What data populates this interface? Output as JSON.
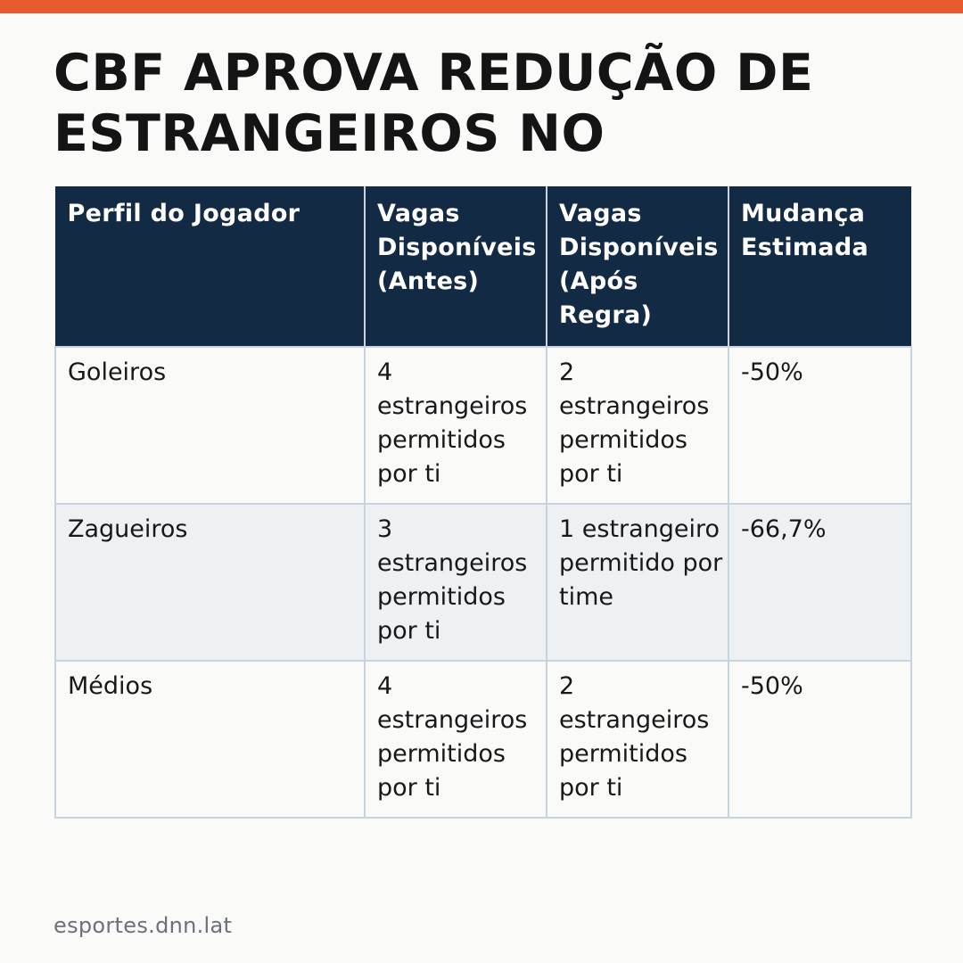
{
  "headline": {
    "line1": "CBF APROVA REDUÇÃO DE",
    "line2": "ESTRANGEIROS NO"
  },
  "table": {
    "headers": [
      "Perfil do Jogador",
      "Vagas Disponíveis (Antes)",
      "Vagas Disponíveis (Após Regra)",
      "Mudança Estimada"
    ],
    "rows": [
      {
        "profile": "Goleiros",
        "before": "4 estrangeiros permitidos por ti",
        "after": "2 estrangeiros permitidos por ti",
        "change": "-50%"
      },
      {
        "profile": "Zagueiros",
        "before": "3 estrangeiros permitidos por ti",
        "after": "1 estrangeiro permitido por time",
        "change": "-66,7%"
      },
      {
        "profile": "Médios",
        "before": "4 estrangeiros permitidos por ti",
        "after": "2 estrangeiros permitidos por ti",
        "change": "-50%"
      }
    ]
  },
  "source": "esportes.dnn.lat",
  "colors": {
    "accent_bar": "#e85b30",
    "header_bg": "#132a45",
    "row_alt_bg": "#edf1f4",
    "border": "#c9d3de"
  }
}
